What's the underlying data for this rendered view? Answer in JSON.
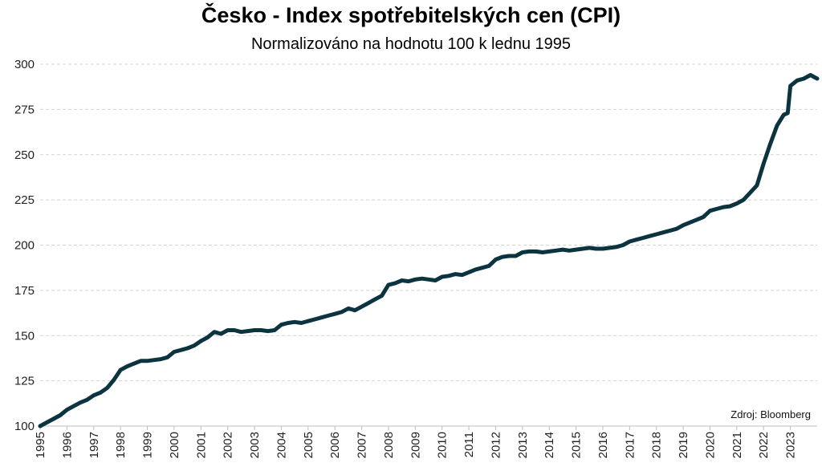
{
  "chart_data": {
    "type": "line",
    "title": "Česko - Index spotřebitelských cen (CPI)",
    "subtitle": "Normalizováno na hodnotu 100 k lednu 1995",
    "xlabel": "",
    "ylabel": "",
    "source": "Zdroj: Bloomberg",
    "ylim": [
      100,
      300
    ],
    "xlim": [
      1995,
      2024
    ],
    "yticks": [
      100,
      125,
      150,
      175,
      200,
      225,
      250,
      275,
      300
    ],
    "xticks": [
      "1995",
      "1996",
      "1997",
      "1998",
      "1999",
      "2000",
      "2001",
      "2002",
      "2003",
      "2004",
      "2005",
      "2006",
      "2007",
      "2008",
      "2009",
      "2010",
      "2011",
      "2012",
      "2013",
      "2014",
      "2015",
      "2016",
      "2017",
      "2018",
      "2019",
      "2020",
      "2021",
      "2022",
      "2023"
    ],
    "grid": true,
    "line_color": "#0c3440",
    "series": [
      {
        "points": [
          [
            1995.0,
            100
          ],
          [
            1995.25,
            102
          ],
          [
            1995.5,
            104
          ],
          [
            1995.75,
            106
          ],
          [
            1996.0,
            109
          ],
          [
            1996.25,
            111
          ],
          [
            1996.5,
            113
          ],
          [
            1996.75,
            114.5
          ],
          [
            1997.0,
            117
          ],
          [
            1997.25,
            118.5
          ],
          [
            1997.5,
            121
          ],
          [
            1997.75,
            125.5
          ],
          [
            1998.0,
            131
          ],
          [
            1998.25,
            133
          ],
          [
            1998.5,
            134.5
          ],
          [
            1998.75,
            136
          ],
          [
            1999.0,
            136
          ],
          [
            1999.25,
            136.5
          ],
          [
            1999.5,
            137
          ],
          [
            1999.75,
            138
          ],
          [
            2000.0,
            141
          ],
          [
            2000.25,
            142
          ],
          [
            2000.5,
            143
          ],
          [
            2000.75,
            144.5
          ],
          [
            2001.0,
            147
          ],
          [
            2001.25,
            149
          ],
          [
            2001.5,
            152
          ],
          [
            2001.75,
            151
          ],
          [
            2002.0,
            153
          ],
          [
            2002.25,
            153
          ],
          [
            2002.5,
            152
          ],
          [
            2002.75,
            152.5
          ],
          [
            2003.0,
            153
          ],
          [
            2003.25,
            153
          ],
          [
            2003.5,
            152.5
          ],
          [
            2003.75,
            153
          ],
          [
            2004.0,
            156
          ],
          [
            2004.25,
            157
          ],
          [
            2004.5,
            157.5
          ],
          [
            2004.75,
            157
          ],
          [
            2005.0,
            158
          ],
          [
            2005.25,
            159
          ],
          [
            2005.5,
            160
          ],
          [
            2005.75,
            161
          ],
          [
            2006.0,
            162
          ],
          [
            2006.25,
            163
          ],
          [
            2006.5,
            165
          ],
          [
            2006.75,
            164
          ],
          [
            2007.0,
            166
          ],
          [
            2007.25,
            168
          ],
          [
            2007.5,
            170
          ],
          [
            2007.75,
            172
          ],
          [
            2008.0,
            178
          ],
          [
            2008.25,
            179
          ],
          [
            2008.5,
            180.5
          ],
          [
            2008.75,
            180
          ],
          [
            2009.0,
            181
          ],
          [
            2009.25,
            181.5
          ],
          [
            2009.5,
            181
          ],
          [
            2009.75,
            180.5
          ],
          [
            2010.0,
            182.5
          ],
          [
            2010.25,
            183
          ],
          [
            2010.5,
            184
          ],
          [
            2010.75,
            183.5
          ],
          [
            2011.0,
            185
          ],
          [
            2011.25,
            186.5
          ],
          [
            2011.5,
            187.5
          ],
          [
            2011.75,
            188.5
          ],
          [
            2012.0,
            192
          ],
          [
            2012.25,
            193.5
          ],
          [
            2012.5,
            194
          ],
          [
            2012.75,
            194
          ],
          [
            2013.0,
            196
          ],
          [
            2013.25,
            196.5
          ],
          [
            2013.5,
            196.5
          ],
          [
            2013.75,
            196
          ],
          [
            2014.0,
            196.5
          ],
          [
            2014.25,
            197
          ],
          [
            2014.5,
            197.5
          ],
          [
            2014.75,
            197
          ],
          [
            2015.0,
            197.5
          ],
          [
            2015.25,
            198
          ],
          [
            2015.5,
            198.5
          ],
          [
            2015.75,
            198
          ],
          [
            2016.0,
            198
          ],
          [
            2016.25,
            198.5
          ],
          [
            2016.5,
            199
          ],
          [
            2016.75,
            200
          ],
          [
            2017.0,
            202
          ],
          [
            2017.25,
            203
          ],
          [
            2017.5,
            204
          ],
          [
            2017.75,
            205
          ],
          [
            2018.0,
            206
          ],
          [
            2018.25,
            207
          ],
          [
            2018.5,
            208
          ],
          [
            2018.75,
            209
          ],
          [
            2019.0,
            211
          ],
          [
            2019.25,
            212.5
          ],
          [
            2019.5,
            214
          ],
          [
            2019.75,
            215.5
          ],
          [
            2020.0,
            219
          ],
          [
            2020.25,
            220
          ],
          [
            2020.5,
            221
          ],
          [
            2020.75,
            221.5
          ],
          [
            2021.0,
            223
          ],
          [
            2021.25,
            225
          ],
          [
            2021.5,
            229
          ],
          [
            2021.75,
            233
          ],
          [
            2022.0,
            245
          ],
          [
            2022.25,
            256
          ],
          [
            2022.5,
            266
          ],
          [
            2022.75,
            272
          ],
          [
            2022.9,
            273
          ],
          [
            2023.0,
            288
          ],
          [
            2023.25,
            291
          ],
          [
            2023.5,
            292
          ],
          [
            2023.75,
            294
          ],
          [
            2024.0,
            292
          ]
        ]
      }
    ]
  }
}
